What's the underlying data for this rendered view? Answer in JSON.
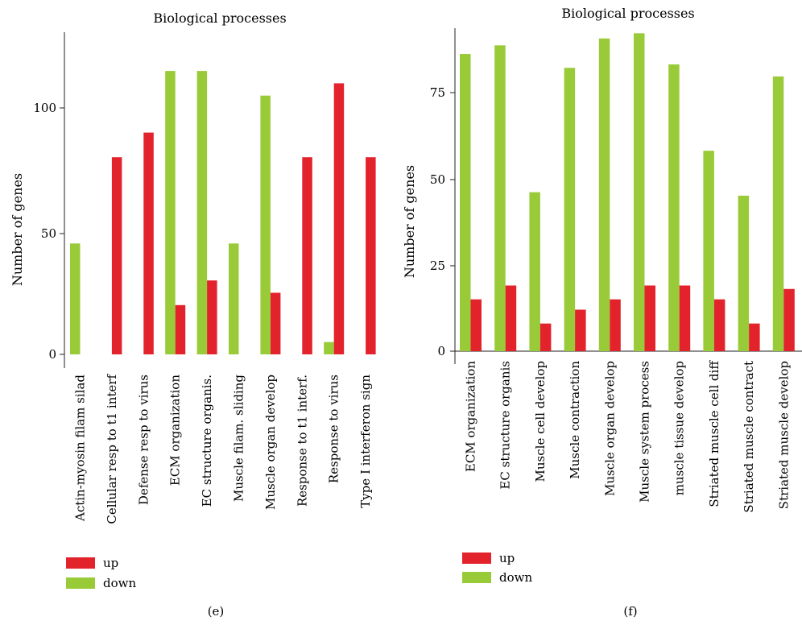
{
  "colors": {
    "up": "#e3232c",
    "down": "#99cb38",
    "axis": "#222222"
  },
  "chart_data": [
    {
      "type": "bar",
      "title": "Biological processes",
      "xlabel": "",
      "ylabel": "Number of genes",
      "ylim": [
        0,
        130
      ],
      "yticks": [
        "0",
        "50",
        "100"
      ],
      "caption": "(e)",
      "legend": {
        "placement": "bottom-left",
        "items": [
          "up",
          "down"
        ]
      },
      "categories": [
        "Actin-myosin filam silad",
        "Cellular resp to t1 interf",
        "Defense resp to virus",
        "ECM organization",
        "EC structure organis.",
        "Muscle filam. sliding",
        "Muscle organ develop",
        "Response to t1 interf.",
        "Response to virus",
        "Type I interferon sign"
      ],
      "series": [
        {
          "name": "down",
          "values": [
            45,
            0,
            0,
            115,
            115,
            45,
            105,
            0,
            5,
            0
          ]
        },
        {
          "name": "up",
          "values": [
            0,
            80,
            90,
            20,
            30,
            0,
            25,
            80,
            110,
            80
          ]
        }
      ]
    },
    {
      "type": "bar",
      "title": "Biological processes",
      "xlabel": "",
      "ylabel": "Number of genes",
      "ylim": [
        0,
        98
      ],
      "yticks": [
        "0",
        "25",
        "50",
        "75"
      ],
      "caption": "(f)",
      "legend": {
        "placement": "bottom-left",
        "items": [
          "up",
          "down"
        ]
      },
      "categories": [
        "ECM organization",
        "EC structure organis",
        "Muscle cell develop",
        "Muscle contraction",
        "Muscle organ develop",
        "Muscle system process",
        "muscle tissue develop",
        "Striated muscle cell diff",
        "Striated muscle contract",
        "Striated muscle develop"
      ],
      "series": [
        {
          "name": "down",
          "values": [
            86,
            88.5,
            46,
            82,
            90.5,
            92,
            83,
            58,
            45,
            79.5
          ]
        },
        {
          "name": "up",
          "values": [
            15,
            19,
            8,
            12,
            15,
            19,
            19,
            15,
            8,
            18
          ]
        }
      ]
    }
  ]
}
